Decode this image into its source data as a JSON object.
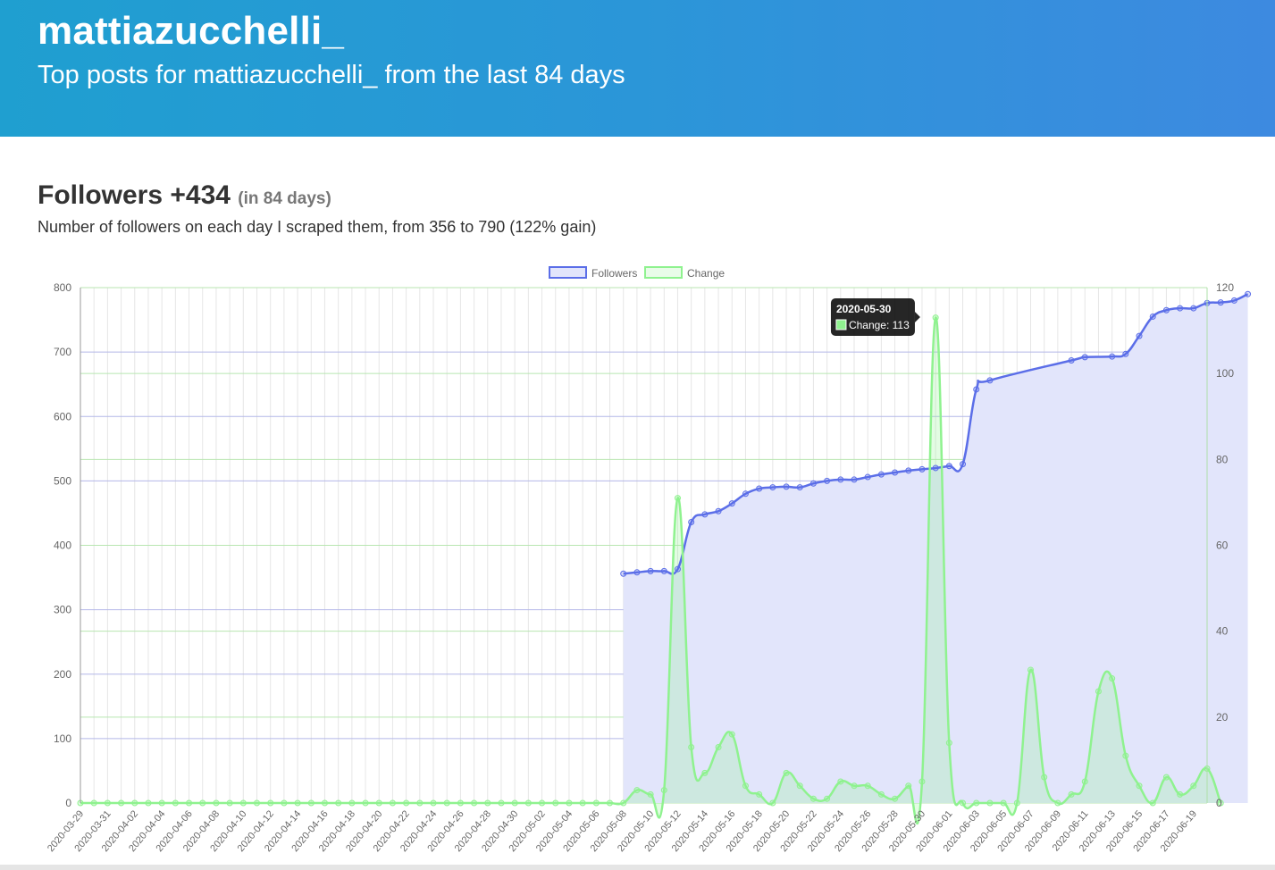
{
  "header": {
    "title": "mattiazucchelli_",
    "subtitle": "Top posts for mattiazucchelli_ from the last 84 days"
  },
  "followers_section": {
    "title": "Followers +434",
    "days_note": "(in 84 days)",
    "description": "Number of followers on each day I scraped them, from 356 to 790 (122% gain)"
  },
  "colors": {
    "followers_line": "#5b6ee8",
    "followers_fill": "#e2e5fb",
    "change_line": "#8ff28f",
    "change_fill": "rgba(143,242,143,0.25)",
    "grid_left": "#b4b7e8",
    "grid_right": "#b8e6b0"
  },
  "chart_data": {
    "type": "line",
    "title": "",
    "legend": {
      "position": "top",
      "entries": [
        "Followers",
        "Change"
      ]
    },
    "x_tick_labels": [
      "2020-03-29",
      "2020-03-31",
      "2020-04-02",
      "2020-04-04",
      "2020-04-06",
      "2020-04-08",
      "2020-04-10",
      "2020-04-12",
      "2020-04-14",
      "2020-04-16",
      "2020-04-18",
      "2020-04-20",
      "2020-04-22",
      "2020-04-24",
      "2020-04-26",
      "2020-04-28",
      "2020-04-30",
      "2020-05-02",
      "2020-05-04",
      "2020-05-06",
      "2020-05-08",
      "2020-05-10",
      "2020-05-12",
      "2020-05-14",
      "2020-05-16",
      "2020-05-18",
      "2020-05-20",
      "2020-05-22",
      "2020-05-24",
      "2020-05-26",
      "2020-05-28",
      "2020-05-30",
      "2020-06-01",
      "2020-06-03",
      "2020-06-05",
      "2020-06-07",
      "2020-06-09",
      "2020-06-11",
      "2020-06-13",
      "2020-06-15",
      "2020-06-17",
      "2020-06-19"
    ],
    "y_left": {
      "min": 0,
      "max": 800,
      "ticks": [
        0,
        100,
        200,
        300,
        400,
        500,
        600,
        700,
        800
      ]
    },
    "y_right": {
      "min": 0,
      "max": 120,
      "ticks": [
        0,
        20,
        40,
        60,
        80,
        100,
        120
      ]
    },
    "series": [
      {
        "name": "Followers",
        "axis": "left",
        "start_date": "2020-05-08",
        "values": [
          356,
          358,
          360,
          360,
          363,
          436,
          448,
          453,
          465,
          480,
          488,
          490,
          491,
          490,
          496,
          500,
          502,
          502,
          506,
          510,
          513,
          516,
          518,
          520,
          523,
          526,
          642,
          656,
          null,
          null,
          null,
          null,
          null,
          687,
          692,
          null,
          693,
          697,
          725,
          755,
          765,
          768,
          768,
          776,
          777,
          780,
          790
        ]
      },
      {
        "name": "Change",
        "axis": "right",
        "start_date": "2020-03-29",
        "values": [
          0,
          0,
          0,
          0,
          0,
          0,
          0,
          0,
          0,
          0,
          0,
          0,
          0,
          0,
          0,
          0,
          0,
          0,
          0,
          0,
          0,
          0,
          0,
          0,
          0,
          0,
          0,
          0,
          0,
          0,
          0,
          0,
          0,
          0,
          0,
          0,
          0,
          0,
          0,
          0,
          0,
          3,
          2,
          3,
          71,
          13,
          7,
          13,
          16,
          4,
          2,
          0,
          7,
          4,
          1,
          1,
          5,
          4,
          4,
          2,
          1,
          4,
          5,
          113,
          14,
          0,
          0,
          0,
          0,
          0,
          31,
          6,
          0,
          2,
          5,
          26,
          29,
          11,
          4,
          0,
          6,
          2,
          4,
          8,
          0
        ]
      }
    ]
  },
  "tooltip": {
    "date": "2020-05-30",
    "text": "Change: 113"
  }
}
